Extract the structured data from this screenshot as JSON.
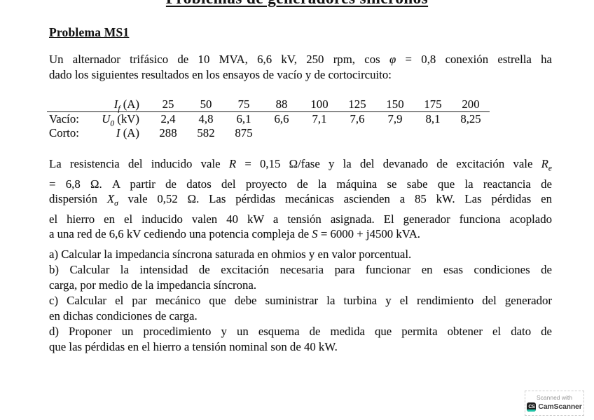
{
  "document": {
    "title": "Problemas de generadores síncronos",
    "section_heading": "Problema MS1"
  },
  "intro": {
    "lines": [
      {
        "text": "Un alternador trifásico de 10 MVA, 6,6 kV, 250 rpm, cos *φ* = 0,8 conexión estrella ha",
        "justify": true
      },
      {
        "text": "dado los siguientes resultados en los ensayos de vacío y de cortocircuito:",
        "justify": false
      }
    ]
  },
  "test_table": {
    "header": {
      "label": "",
      "variable": "*I_f_* (A)",
      "values": [
        "25",
        "50",
        "75",
        "88",
        "100",
        "125",
        "150",
        "175",
        "200"
      ]
    },
    "rows": [
      {
        "label": "Vacío:",
        "variable": "*U_0_* (kV)",
        "values": [
          "2,4",
          "4,8",
          "6,1",
          "6,6",
          "7,1",
          "7,6",
          "7,9",
          "8,1",
          "8,25"
        ]
      },
      {
        "label": "Corto:",
        "variable": "*I* (A)",
        "values": [
          "288",
          "582",
          "875",
          "",
          "",
          "",
          "",
          "",
          ""
        ]
      }
    ]
  },
  "body": {
    "lines": [
      {
        "text": "La resistencia del inducido vale *R* = 0,15 Ω/fase y la del devanado de excitación vale *R_e_*",
        "justify": true
      },
      {
        "text": "= 6,8 Ω. A partir de datos del proyecto de la máquina se sabe que la reactancia de",
        "justify": true
      },
      {
        "text": "dispersión *X_σ_* vale 0,52 Ω. Las pérdidas mecánicas ascienden a 85 kW. Las pérdidas en",
        "justify": true
      },
      {
        "text": "el hierro en el inducido valen 40 kW a tensión asignada. El generador funciona acoplado",
        "justify": true
      },
      {
        "text": "a una red de 6,6 kV cediendo una potencia compleja de *S* = 6000 + j4500 kVA.",
        "justify": false
      }
    ]
  },
  "questions": {
    "lines": [
      {
        "text": "a) Calcular la impedancia síncrona saturada en ohmios y en valor porcentual.",
        "justify": false
      },
      {
        "text": "b) Calcular la intensidad de excitación necesaria para funcionar en esas condiciones de",
        "justify": true
      },
      {
        "text": "carga, por medio de la impedancia síncrona.",
        "justify": false
      },
      {
        "text": "c) Calcular el par mecánico que debe suministrar la turbina y el rendimiento del generador",
        "justify": true
      },
      {
        "text": "en dichas condiciones de carga.",
        "justify": false
      },
      {
        "text": "d) Proponer un procedimiento y un esquema de medida que permita obtener el dato de",
        "justify": true
      },
      {
        "text": "que las pérdidas en el hierro a tensión nominal son de 40 kW.",
        "justify": false
      }
    ]
  },
  "scanner_badge": {
    "top_label": "Scanned with",
    "brand": "CamScanner",
    "icon_text": "CS"
  },
  "colors": {
    "text": "#141414",
    "badge_border": "#cccccc",
    "badge_gray": "#969696",
    "brand_dark": "#3c3c3c",
    "icon_bg": "#1f1f1f",
    "teal": "#1fc3a6"
  }
}
